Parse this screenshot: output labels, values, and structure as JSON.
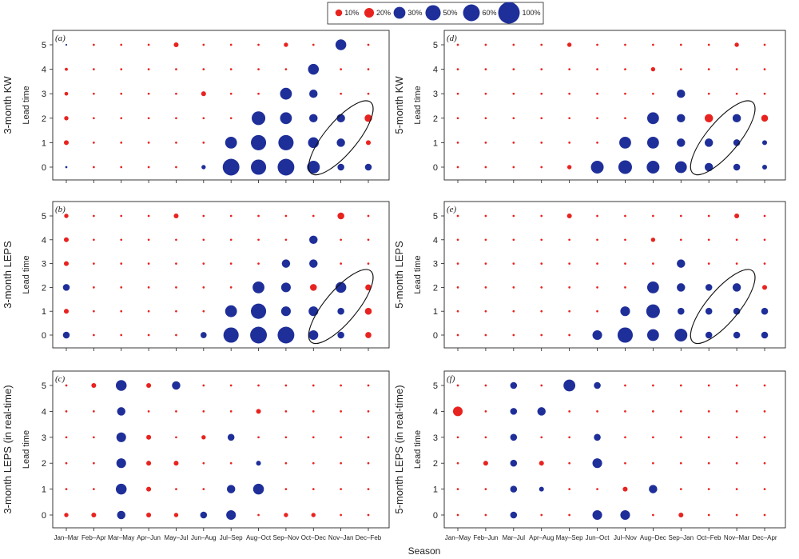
{
  "colors": {
    "positive": "#1f2f99",
    "negative": "#e8231f",
    "frame": "#222222"
  },
  "legend": {
    "items": [
      {
        "label": "10%",
        "value": 10
      },
      {
        "label": "20%",
        "value": 20
      },
      {
        "label": "30%",
        "value": 30
      },
      {
        "label": "50%",
        "value": 50
      },
      {
        "label": "60%",
        "value": 60
      },
      {
        "label": "100%",
        "value": 100
      }
    ],
    "colors": [
      "negative",
      "negative",
      "positive",
      "positive",
      "positive",
      "positive"
    ]
  },
  "xlabel": "Season",
  "chart_data": [
    {
      "type": "scatter",
      "panel": "(a)",
      "ylabel_outer": "3-month KW",
      "ylabel": "Lead time",
      "categories": [
        "Jan–Mar",
        "Feb–Apr",
        "Mar–May",
        "Apr–Jun",
        "May–Jul",
        "Jun–Aug",
        "Jul–Sep",
        "Aug–Oct",
        "Sep–Nov",
        "Oct–Dec",
        "Nov–Jan",
        "Dec–Feb"
      ],
      "yticks": [
        0,
        1,
        2,
        3,
        4,
        5
      ],
      "values": [
        [
          1,
          5,
          4,
          3,
          2,
          0
        ],
        [
          1,
          1,
          1,
          1,
          1,
          1
        ],
        [
          1,
          1,
          1,
          1,
          1,
          1
        ],
        [
          1,
          1,
          1,
          1,
          1,
          1
        ],
        [
          1,
          1,
          1,
          1,
          1,
          5
        ],
        [
          4,
          1,
          1,
          5,
          1,
          1
        ],
        [
          60,
          30,
          1,
          1,
          1,
          1
        ],
        [
          50,
          50,
          40,
          1,
          1,
          1
        ],
        [
          60,
          50,
          30,
          30,
          1,
          4
        ],
        [
          35,
          25,
          15,
          15,
          25,
          1
        ],
        [
          10,
          15,
          15,
          1,
          1,
          25
        ],
        [
          10,
          5,
          12,
          1,
          1,
          1
        ]
      ],
      "sign": [
        [
          1,
          -1,
          -1,
          -1,
          -1,
          1
        ],
        [
          -1,
          -1,
          -1,
          -1,
          -1,
          -1
        ],
        [
          -1,
          -1,
          -1,
          -1,
          -1,
          -1
        ],
        [
          -1,
          -1,
          -1,
          -1,
          -1,
          -1
        ],
        [
          -1,
          -1,
          -1,
          -1,
          -1,
          -1
        ],
        [
          1,
          -1,
          -1,
          -1,
          -1,
          -1
        ],
        [
          1,
          1,
          -1,
          -1,
          -1,
          -1
        ],
        [
          1,
          1,
          1,
          -1,
          -1,
          -1
        ],
        [
          1,
          1,
          1,
          1,
          -1,
          -1
        ],
        [
          1,
          1,
          1,
          1,
          1,
          -1
        ],
        [
          1,
          1,
          1,
          -1,
          -1,
          1
        ],
        [
          1,
          -1,
          -1,
          -1,
          -1,
          -1
        ]
      ],
      "ellipse": {
        "cx": 10.0,
        "cy": 1.2
      }
    },
    {
      "type": "scatter",
      "panel": "(b)",
      "ylabel_outer": "3-month LEPS",
      "ylabel": "Lead time",
      "categories": [
        "Jan–Mar",
        "Feb–Apr",
        "Mar–May",
        "Apr–Jun",
        "May–Jul",
        "Jun–Aug",
        "Jul–Sep",
        "Aug–Oct",
        "Sep–Nov",
        "Oct–Dec",
        "Nov–Jan",
        "Dec–Feb"
      ],
      "yticks": [
        0,
        1,
        2,
        3,
        4,
        5
      ],
      "values": [
        [
          10,
          5,
          10,
          5,
          5,
          4
        ],
        [
          1,
          1,
          1,
          1,
          1,
          1
        ],
        [
          1,
          1,
          1,
          1,
          1,
          1
        ],
        [
          1,
          1,
          1,
          1,
          1,
          1
        ],
        [
          1,
          1,
          1,
          1,
          1,
          5
        ],
        [
          8,
          1,
          1,
          1,
          1,
          1
        ],
        [
          50,
          30,
          1,
          1,
          1,
          1
        ],
        [
          60,
          50,
          30,
          1,
          1,
          1
        ],
        [
          60,
          20,
          20,
          15,
          1,
          1
        ],
        [
          20,
          20,
          10,
          15,
          15,
          1
        ],
        [
          10,
          10,
          25,
          1,
          1,
          10
        ],
        [
          8,
          10,
          8,
          1,
          1,
          1
        ]
      ],
      "sign": [
        [
          1,
          -1,
          1,
          -1,
          -1,
          -1
        ],
        [
          -1,
          -1,
          -1,
          -1,
          -1,
          -1
        ],
        [
          -1,
          -1,
          -1,
          -1,
          -1,
          -1
        ],
        [
          -1,
          -1,
          -1,
          -1,
          -1,
          -1
        ],
        [
          -1,
          -1,
          -1,
          -1,
          -1,
          -1
        ],
        [
          1,
          -1,
          -1,
          -1,
          -1,
          -1
        ],
        [
          1,
          1,
          -1,
          -1,
          -1,
          -1
        ],
        [
          1,
          1,
          1,
          -1,
          -1,
          -1
        ],
        [
          1,
          1,
          1,
          1,
          -1,
          -1
        ],
        [
          1,
          1,
          -1,
          1,
          1,
          -1
        ],
        [
          1,
          1,
          1,
          -1,
          -1,
          -1
        ],
        [
          -1,
          -1,
          -1,
          -1,
          -1,
          -1
        ]
      ],
      "ellipse": {
        "cx": 10.0,
        "cy": 1.2
      }
    },
    {
      "type": "scatter",
      "panel": "(c)",
      "ylabel_outer": "3-month LEPS (in real-time)",
      "ylabel": "Lead time",
      "categories": [
        "Jan–Mar",
        "Feb–Apr",
        "Mar–May",
        "Apr–Jun",
        "May–Jul",
        "Jun–Aug",
        "Jul–Sep",
        "Aug–Oct",
        "Sep–Nov",
        "Oct–Dec",
        "Nov–Jan",
        "Dec–Feb"
      ],
      "yticks": [
        0,
        1,
        2,
        3,
        4,
        5
      ],
      "values": [
        [
          4,
          1,
          1,
          1,
          1,
          1
        ],
        [
          5,
          1,
          1,
          1,
          1,
          5
        ],
        [
          15,
          25,
          20,
          20,
          15,
          25
        ],
        [
          5,
          5,
          5,
          5,
          1,
          5
        ],
        [
          4,
          1,
          5,
          1,
          1,
          15
        ],
        [
          10,
          1,
          1,
          4,
          1,
          1
        ],
        [
          20,
          15,
          1,
          10,
          1,
          1
        ],
        [
          1,
          25,
          5,
          1,
          5,
          1
        ],
        [
          4,
          1,
          1,
          1,
          1,
          1
        ],
        [
          4,
          1,
          1,
          1,
          1,
          1
        ],
        [
          1,
          1,
          1,
          1,
          1,
          1
        ],
        [
          1,
          1,
          1,
          1,
          1,
          1
        ]
      ],
      "sign": [
        [
          -1,
          -1,
          -1,
          -1,
          -1,
          -1
        ],
        [
          -1,
          -1,
          -1,
          -1,
          -1,
          -1
        ],
        [
          1,
          1,
          1,
          1,
          1,
          1
        ],
        [
          -1,
          -1,
          -1,
          -1,
          -1,
          -1
        ],
        [
          -1,
          -1,
          -1,
          -1,
          -1,
          1
        ],
        [
          1,
          -1,
          -1,
          -1,
          -1,
          -1
        ],
        [
          1,
          1,
          -1,
          1,
          -1,
          -1
        ],
        [
          -1,
          1,
          1,
          -1,
          -1,
          -1
        ],
        [
          -1,
          -1,
          -1,
          -1,
          -1,
          -1
        ],
        [
          -1,
          -1,
          -1,
          -1,
          -1,
          -1
        ],
        [
          -1,
          -1,
          -1,
          -1,
          -1,
          -1
        ],
        [
          -1,
          -1,
          -1,
          -1,
          -1,
          -1
        ]
      ]
    },
    {
      "type": "scatter",
      "panel": "(d)",
      "ylabel_outer": "5-month KW",
      "ylabel": "Lead time",
      "categories": [
        "Jan–May",
        "Feb–Jun",
        "Mar–Jul",
        "Apr–Aug",
        "May–Sep",
        "Jun–Oct",
        "Jul–Nov",
        "Aug–Dec",
        "Sep–Jan",
        "Oct–Feb",
        "Nov–Mar",
        "Dec–Apr"
      ],
      "yticks": [
        0,
        1,
        2,
        3,
        4,
        5
      ],
      "values": [
        [
          1,
          1,
          1,
          1,
          1,
          1
        ],
        [
          1,
          1,
          1,
          1,
          1,
          1
        ],
        [
          1,
          1,
          1,
          1,
          1,
          1
        ],
        [
          1,
          1,
          1,
          1,
          1,
          1
        ],
        [
          4,
          1,
          1,
          1,
          1,
          4
        ],
        [
          35,
          1,
          1,
          1,
          1,
          1
        ],
        [
          40,
          30,
          1,
          1,
          1,
          1
        ],
        [
          35,
          30,
          30,
          1,
          4,
          1
        ],
        [
          30,
          15,
          15,
          15,
          1,
          1
        ],
        [
          15,
          15,
          15,
          1,
          1,
          1
        ],
        [
          10,
          10,
          15,
          1,
          1,
          4
        ],
        [
          5,
          5,
          10,
          1,
          1,
          1
        ]
      ],
      "sign": [
        [
          -1,
          -1,
          -1,
          -1,
          -1,
          -1
        ],
        [
          -1,
          -1,
          -1,
          -1,
          -1,
          -1
        ],
        [
          -1,
          -1,
          -1,
          -1,
          -1,
          -1
        ],
        [
          -1,
          -1,
          -1,
          -1,
          -1,
          -1
        ],
        [
          -1,
          -1,
          -1,
          -1,
          -1,
          -1
        ],
        [
          1,
          -1,
          -1,
          -1,
          -1,
          -1
        ],
        [
          1,
          1,
          -1,
          -1,
          -1,
          -1
        ],
        [
          1,
          1,
          1,
          -1,
          -1,
          -1
        ],
        [
          1,
          1,
          1,
          1,
          -1,
          -1
        ],
        [
          1,
          1,
          -1,
          -1,
          -1,
          -1
        ],
        [
          1,
          1,
          1,
          -1,
          -1,
          -1
        ],
        [
          1,
          1,
          -1,
          -1,
          -1,
          -1
        ]
      ],
      "ellipse": {
        "cx": 9.5,
        "cy": 1.2
      }
    },
    {
      "type": "scatter",
      "panel": "(e)",
      "ylabel_outer": "5-month LEPS",
      "ylabel": "Lead time",
      "categories": [
        "Jan–May",
        "Feb–Jun",
        "Mar–Jul",
        "Apr–Aug",
        "May–Sep",
        "Jun–Oct",
        "Jul–Nov",
        "Aug–Dec",
        "Sep–Jan",
        "Oct–Feb",
        "Nov–Mar",
        "Dec–Apr"
      ],
      "yticks": [
        0,
        1,
        2,
        3,
        4,
        5
      ],
      "values": [
        [
          1,
          1,
          1,
          1,
          1,
          1
        ],
        [
          1,
          1,
          1,
          1,
          1,
          1
        ],
        [
          1,
          1,
          1,
          1,
          1,
          1
        ],
        [
          1,
          1,
          1,
          1,
          1,
          1
        ],
        [
          1,
          1,
          1,
          1,
          1,
          5
        ],
        [
          20,
          1,
          1,
          1,
          1,
          1
        ],
        [
          50,
          20,
          1,
          1,
          1,
          1
        ],
        [
          30,
          40,
          30,
          1,
          4,
          1
        ],
        [
          35,
          10,
          15,
          15,
          1,
          1
        ],
        [
          10,
          10,
          10,
          1,
          1,
          1
        ],
        [
          10,
          10,
          15,
          1,
          1,
          5
        ],
        [
          10,
          10,
          5,
          1,
          1,
          1
        ]
      ],
      "sign": [
        [
          -1,
          -1,
          -1,
          -1,
          -1,
          -1
        ],
        [
          -1,
          -1,
          -1,
          -1,
          -1,
          -1
        ],
        [
          -1,
          -1,
          -1,
          -1,
          -1,
          -1
        ],
        [
          -1,
          -1,
          -1,
          -1,
          -1,
          -1
        ],
        [
          -1,
          -1,
          -1,
          -1,
          -1,
          -1
        ],
        [
          1,
          -1,
          -1,
          -1,
          -1,
          -1
        ],
        [
          1,
          1,
          -1,
          -1,
          -1,
          -1
        ],
        [
          1,
          1,
          1,
          -1,
          -1,
          -1
        ],
        [
          1,
          1,
          1,
          1,
          -1,
          -1
        ],
        [
          1,
          1,
          1,
          -1,
          -1,
          -1
        ],
        [
          1,
          1,
          1,
          -1,
          -1,
          -1
        ],
        [
          1,
          1,
          -1,
          -1,
          -1,
          -1
        ]
      ],
      "ellipse": {
        "cx": 9.5,
        "cy": 1.2
      }
    },
    {
      "type": "scatter",
      "panel": "(f)",
      "ylabel_outer": "5-month LEPS (in real-time)",
      "ylabel": "Lead time",
      "categories": [
        "Jan–May",
        "Feb–Jun",
        "Mar–Jul",
        "Apr–Aug",
        "May–Sep",
        "Jun–Oct",
        "Jul–Nov",
        "Aug–Dec",
        "Sep–Jan",
        "Oct–Feb",
        "Nov–Mar",
        "Dec–Apr"
      ],
      "yticks": [
        0,
        1,
        2,
        3,
        4,
        5
      ],
      "values": [
        [
          1,
          1,
          1,
          1,
          20,
          1
        ],
        [
          1,
          1,
          5,
          1,
          1,
          1
        ],
        [
          10,
          10,
          10,
          10,
          10,
          10
        ],
        [
          1,
          5,
          5,
          1,
          15,
          1
        ],
        [
          1,
          1,
          1,
          1,
          1,
          30
        ],
        [
          20,
          1,
          20,
          10,
          1,
          10
        ],
        [
          20,
          5,
          1,
          1,
          1,
          1
        ],
        [
          1,
          15,
          1,
          1,
          1,
          1
        ],
        [
          5,
          1,
          1,
          1,
          1,
          1
        ],
        [
          1,
          1,
          1,
          1,
          1,
          1
        ],
        [
          1,
          1,
          1,
          1,
          1,
          1
        ],
        [
          1,
          1,
          1,
          1,
          1,
          1
        ]
      ],
      "sign": [
        [
          -1,
          -1,
          -1,
          -1,
          -1,
          -1
        ],
        [
          -1,
          -1,
          -1,
          -1,
          -1,
          -1
        ],
        [
          1,
          1,
          1,
          1,
          1,
          1
        ],
        [
          -1,
          1,
          -1,
          -1,
          1,
          -1
        ],
        [
          -1,
          -1,
          -1,
          -1,
          -1,
          1
        ],
        [
          1,
          -1,
          1,
          1,
          -1,
          1
        ],
        [
          1,
          -1,
          -1,
          -1,
          -1,
          -1
        ],
        [
          -1,
          1,
          -1,
          -1,
          -1,
          -1
        ],
        [
          -1,
          -1,
          -1,
          -1,
          -1,
          -1
        ],
        [
          -1,
          -1,
          -1,
          -1,
          -1,
          -1
        ],
        [
          -1,
          -1,
          -1,
          -1,
          -1,
          -1
        ],
        [
          -1,
          -1,
          -1,
          -1,
          -1,
          -1
        ]
      ]
    }
  ]
}
